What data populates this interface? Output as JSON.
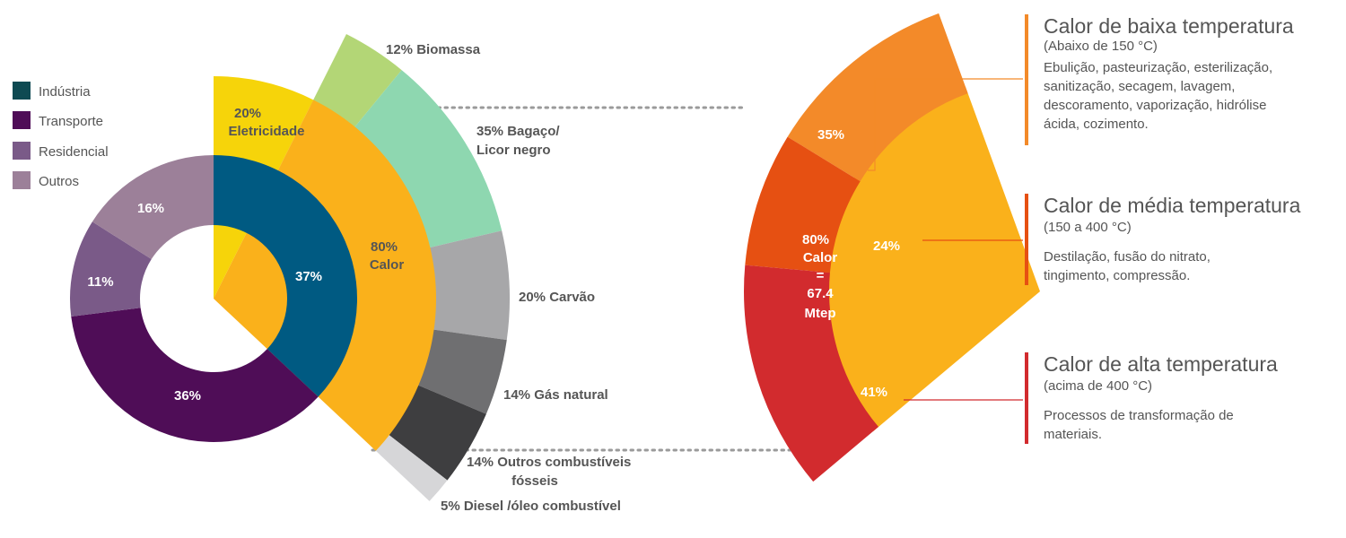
{
  "legend": [
    {
      "label": "Indústria",
      "color": "#0e4a52"
    },
    {
      "label": "Transporte",
      "color": "#4f0d57"
    },
    {
      "label": "Residencial",
      "color": "#7a5a88"
    },
    {
      "label": "Outros",
      "color": "#9c8099"
    }
  ],
  "sectors_donut": [
    {
      "name": "Indústria",
      "value": 37,
      "label": "37%",
      "color": "#005a82"
    },
    {
      "name": "Transporte",
      "value": 36,
      "label": "36%",
      "color": "#4f0d57"
    },
    {
      "name": "Residencial",
      "value": 11,
      "label": "11%",
      "color": "#7a5a88"
    },
    {
      "name": "Outros",
      "value": 16,
      "label": "16%",
      "color": "#9c8099"
    }
  ],
  "industry_use": [
    {
      "name": "Calor",
      "value": 80,
      "label_pct": "80%",
      "label_name": "Calor",
      "color": "#fab11b"
    },
    {
      "name": "Eletricidade",
      "value": 20,
      "label_pct": "20%",
      "label_name": "Eletricidade",
      "color": "#f6d40a"
    }
  ],
  "heat_sources": [
    {
      "value": 12,
      "label": "12% Biomassa",
      "color": "#b3d676"
    },
    {
      "value": 35,
      "label": "35% Bagaço/ Licor negro",
      "lines": [
        "35% Bagaço/",
        "Licor negro"
      ],
      "color": "#8ed7b0"
    },
    {
      "value": 20,
      "label": "20% Carvão",
      "color": "#a7a7a9"
    },
    {
      "value": 14,
      "label": "14% Gás natural",
      "color": "#6f6f71"
    },
    {
      "value": 14,
      "label": "14% Outros combustíveis fósseis",
      "lines": [
        "14% Outros combustíveis",
        "fósseis"
      ],
      "color": "#3e3e40"
    },
    {
      "value": 5,
      "label": "5% Diesel /óleo combustível",
      "color": "#d6d6d8"
    }
  ],
  "heat_center": {
    "pct": "80%",
    "line1": "Calor",
    "line2": "=",
    "line3": "67.4",
    "line4": "Mtep",
    "color": "#fab11b"
  },
  "heat_temperature": [
    {
      "value": 35,
      "label": "35%",
      "color": "#f38a29"
    },
    {
      "value": 24,
      "label": "24%",
      "color": "#e65012"
    },
    {
      "value": 41,
      "label": "41%",
      "color": "#d22b2e"
    }
  ],
  "panels": [
    {
      "title": "Calor de baixa temperatura",
      "range": "(Abaixo de 150 °C)",
      "desc": "Ebulição, pasteurização, esterilização, sanitização, secagem, lavagem, descoramento, vaporização, hidrólise ácida, cozimento.",
      "color": "#f38a29"
    },
    {
      "title": "Calor de média temperatura",
      "range": "(150 a 400 °C)",
      "desc": "Destilação, fusão do nitrato, tingimento, compressão.",
      "color": "#e65012"
    },
    {
      "title": "Calor de alta temperatura",
      "range": "(acima de 400 °C)",
      "desc": "Processos de transformação de materiais.",
      "color": "#d22b2e"
    }
  ]
}
